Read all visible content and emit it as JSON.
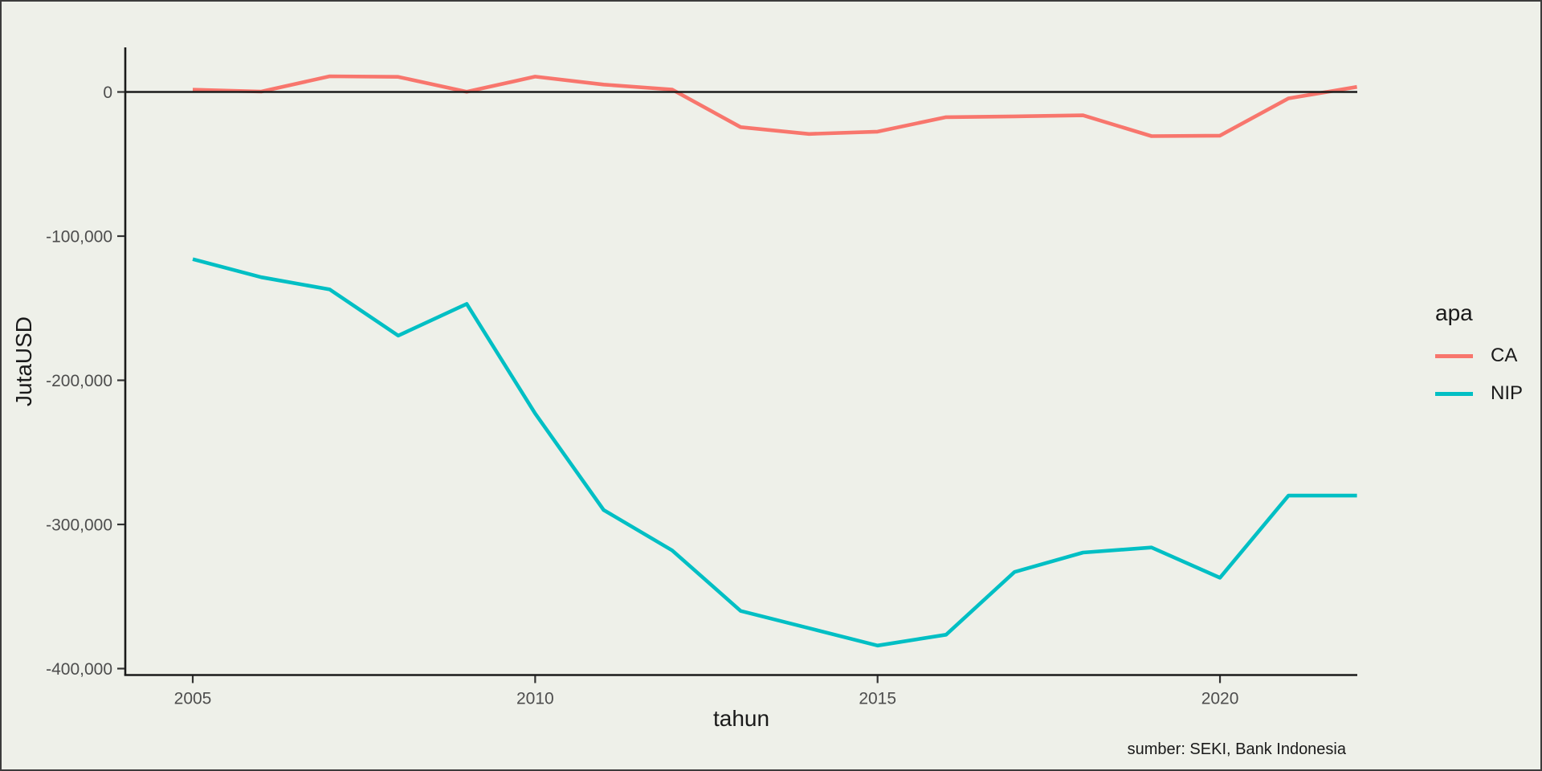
{
  "chart_data": {
    "type": "line",
    "title": "",
    "xlabel": "tahun",
    "ylabel": "JutaUSD",
    "legend_title": "apa",
    "legend_position": "right",
    "caption": "sumber: SEKI, Bank Indonesia",
    "grid": false,
    "zero_line": true,
    "background": "#EEF0E9",
    "axis_color": "#1a1a1a",
    "tick_label_color": "#4d4d4d",
    "xlim": [
      2004,
      2022
    ],
    "ylim": [
      -404000,
      31000
    ],
    "x_ticks": [
      2005,
      2010,
      2015,
      2020
    ],
    "x_tick_labels": [
      "2005",
      "2010",
      "2015",
      "2020"
    ],
    "y_ticks": [
      0,
      -100000,
      -200000,
      -300000,
      -400000
    ],
    "y_tick_labels": [
      "0",
      "-100,000",
      "-200,000",
      "-300,000",
      "-400,000"
    ],
    "x": [
      2005,
      2006,
      2007,
      2008,
      2009,
      2010,
      2011,
      2012,
      2013,
      2014,
      2015,
      2016,
      2017,
      2018,
      2019,
      2020,
      2021,
      2022
    ],
    "series": [
      {
        "name": "CA",
        "color": "#F8766D",
        "values": [
          1563,
          278,
          10859,
          10491,
          126,
          10628,
          5144,
          1685,
          -24418,
          -29109,
          -27510,
          -17519,
          -16952,
          -16196,
          -30633,
          -30279,
          -4433,
          3511
        ]
      },
      {
        "name": "NIP",
        "color": "#00BFC4",
        "values": [
          -116000,
          -128500,
          -137000,
          -169000,
          -147000,
          -223000,
          -290000,
          -318000,
          -360000,
          -372000,
          -384000,
          -376500,
          -333000,
          -319500,
          -316000,
          -337000,
          -280000,
          -280000
        ]
      }
    ]
  }
}
